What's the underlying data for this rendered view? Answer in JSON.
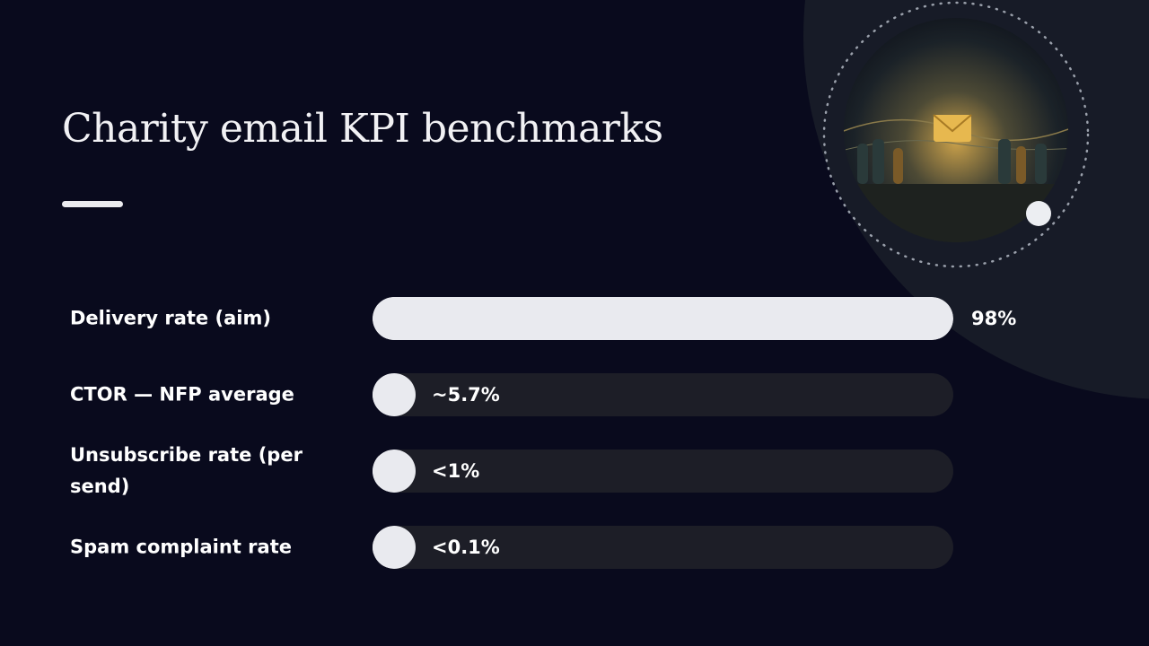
{
  "chart_data": {
    "type": "bar",
    "orientation": "horizontal",
    "title": "Charity email KPI benchmarks",
    "categories": [
      "Delivery rate (aim)",
      "CTOR — NFP average",
      "Unsubscribe rate (per send)",
      "Spam complaint rate"
    ],
    "values": [
      98,
      5.7,
      1,
      0.1
    ],
    "value_labels": [
      "98%",
      "~5.7%",
      "<1%",
      "<0.1%"
    ],
    "color": "#e9eaef"
  }
}
